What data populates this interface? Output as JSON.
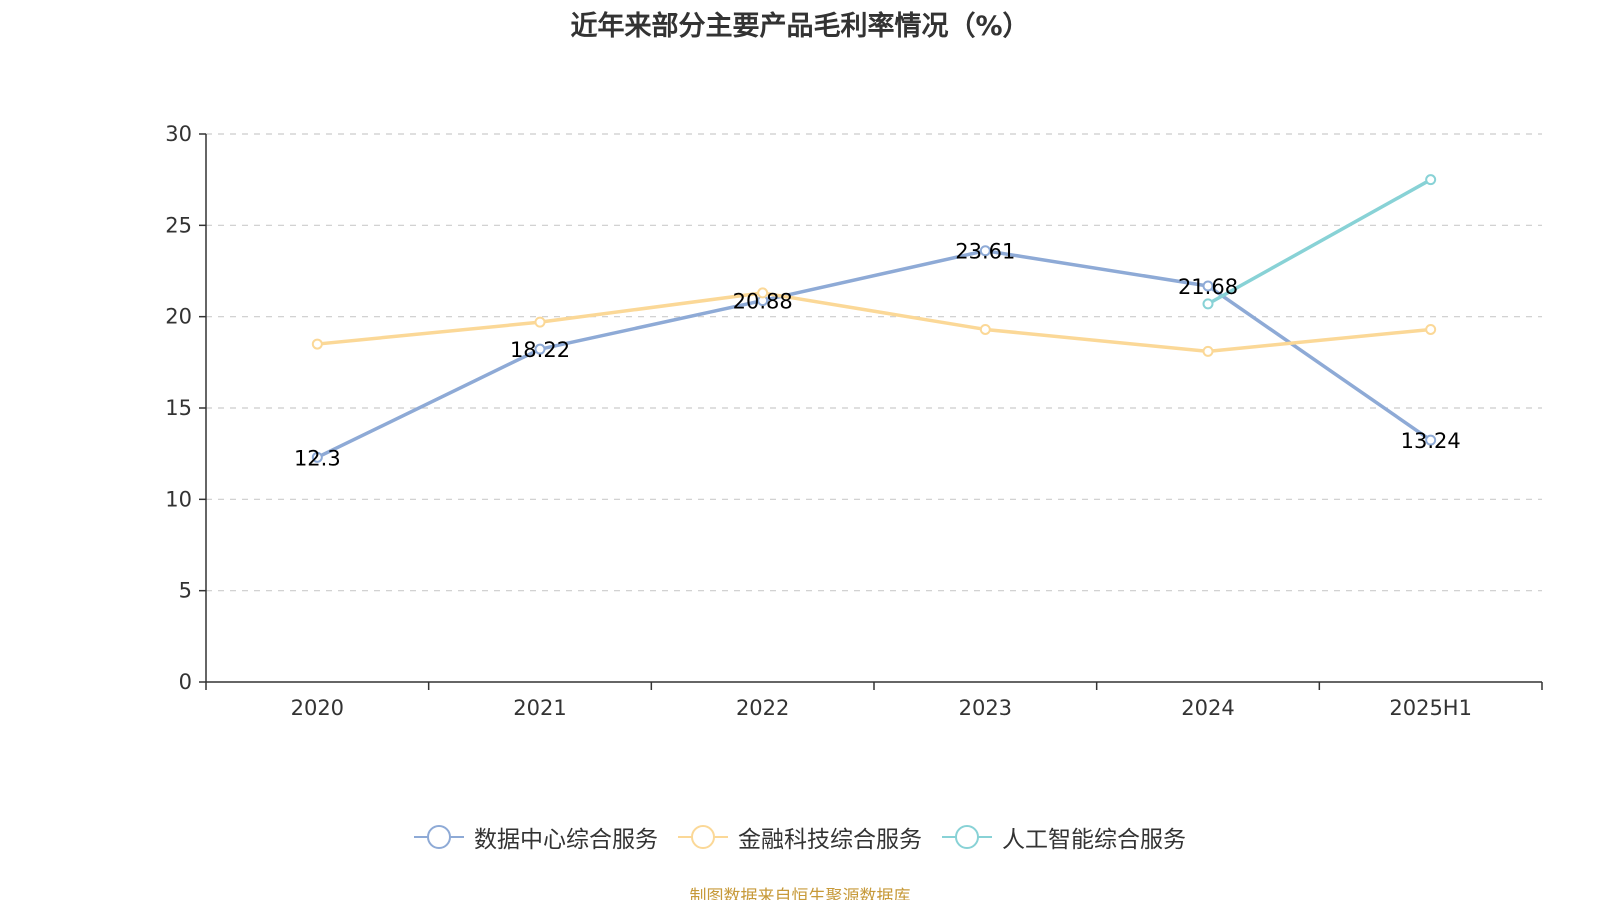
{
  "chart_data": {
    "type": "line",
    "title": "近年来部分主要产品毛利率情况（%）",
    "categories": [
      "2020",
      "2021",
      "2022",
      "2023",
      "2024",
      "2025H1"
    ],
    "ylim": [
      0,
      30
    ],
    "yticks": [
      0,
      5,
      10,
      15,
      20,
      25,
      30
    ],
    "grid": true,
    "legend_position": "bottom",
    "series": [
      {
        "name": "数据中心综合服务",
        "color": "#8eaad6",
        "values": [
          12.3,
          18.22,
          20.88,
          23.61,
          21.68,
          13.24
        ],
        "labels": [
          "12.3",
          "18.22",
          "20.88",
          "23.61",
          "21.68",
          "13.24"
        ]
      },
      {
        "name": "金融科技综合服务",
        "color": "#fbd897",
        "values": [
          18.5,
          19.7,
          21.3,
          19.3,
          18.1,
          19.3
        ]
      },
      {
        "name": "人工智能综合服务",
        "color": "#88d2d6",
        "values": [
          null,
          null,
          null,
          null,
          20.7,
          27.5
        ]
      }
    ],
    "source": "制图数据来自恒生聚源数据库"
  }
}
